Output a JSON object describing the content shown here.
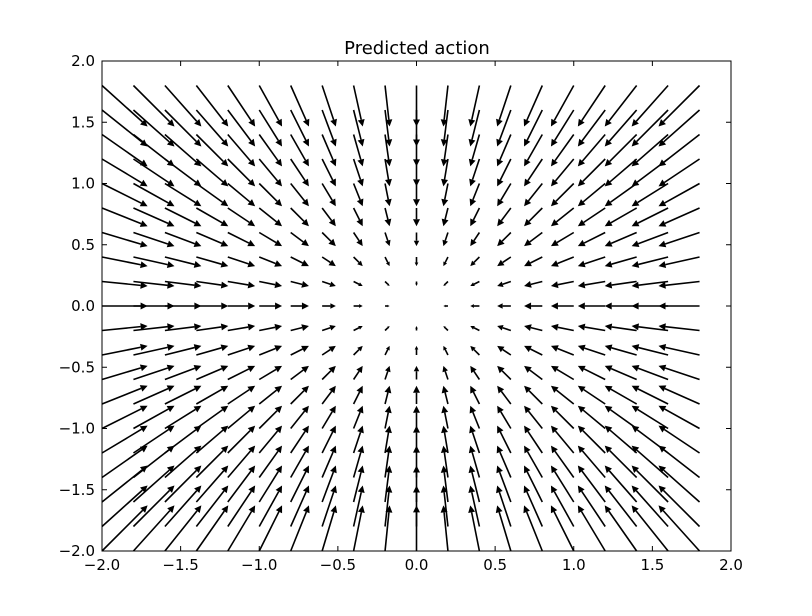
{
  "chart_data": {
    "type": "quiver",
    "title": "Predicted action",
    "xlabel": "",
    "ylabel": "",
    "xlim": [
      -2.0,
      2.0
    ],
    "ylim": [
      -2.0,
      2.0
    ],
    "xticks": [
      -2.0,
      -1.5,
      -1.0,
      -0.5,
      0.0,
      0.5,
      1.0,
      1.5,
      2.0
    ],
    "yticks": [
      -2.0,
      -1.5,
      -1.0,
      -0.5,
      0.0,
      0.5,
      1.0,
      1.5,
      2.0
    ],
    "xtick_labels": [
      "−2.0",
      "−1.5",
      "−1.0",
      "−0.5",
      "0.0",
      "0.5",
      "1.0",
      "1.5",
      "2.0"
    ],
    "ytick_labels": [
      "−2.0",
      "−1.5",
      "−1.0",
      "−0.5",
      "0.0",
      "0.5",
      "1.0",
      "1.5",
      "2.0"
    ],
    "grid_x": [
      -2.0,
      -1.8,
      -1.6,
      -1.4,
      -1.2,
      -1.0,
      -0.8,
      -0.6,
      -0.4,
      -0.2,
      0.0,
      0.2,
      0.4,
      0.6,
      0.8,
      1.0,
      1.2,
      1.4,
      1.6,
      1.8
    ],
    "grid_y": [
      -2.0,
      -1.8,
      -1.6,
      -1.4,
      -1.2,
      -1.0,
      -0.8,
      -0.6,
      -0.4,
      -0.2,
      0.0,
      0.2,
      0.4,
      0.6,
      0.8,
      1.0,
      1.2,
      1.4,
      1.6,
      1.8
    ],
    "vector_field": {
      "u": "-x",
      "v": "-y",
      "description_of_direction": "arrows point toward the origin (0.0, 0.0), length proportional to distance"
    },
    "grid": false,
    "arrow_color": "#000000"
  }
}
